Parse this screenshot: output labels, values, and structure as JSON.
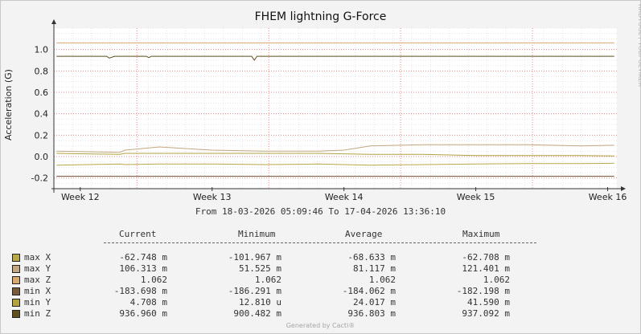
{
  "watermark": "RRDTOOL / TOBI OETIKER",
  "footer": "Generated by Cacti®",
  "chart_data": {
    "type": "line",
    "title": "FHEM lightning G-Force",
    "ylabel": "Acceleration (G)",
    "xlabel": "",
    "ylim": [
      -0.3,
      1.2
    ],
    "yticks": [
      -0.2,
      0.0,
      0.2,
      0.4,
      0.6,
      0.8,
      1.0
    ],
    "ytick_labels": [
      "-0.2",
      "0.0",
      "0.2",
      "0.4",
      "0.6",
      "0.8",
      "1.0"
    ],
    "x_range_weeks": [
      11.8,
      16.07
    ],
    "xticks": [
      12,
      13,
      14,
      15,
      16
    ],
    "xtick_labels": [
      "Week 12",
      "Week 13",
      "Week 14",
      "Week 15",
      "Week 16"
    ],
    "date_range": "From 18-03-2026 05:09:46 To 17-04-2026 13:36:10",
    "grid": true,
    "legend_position": "bottom-left",
    "legend_headers": [
      "Current",
      "Minimum",
      "Average",
      "Maximum"
    ],
    "series": [
      {
        "name": "max X",
        "color": "#b8a84a",
        "current": "-62.748 m",
        "minimum": "-101.967 m",
        "average": "-68.633 m",
        "maximum": "-62.708 m",
        "x": [
          11.82,
          12.3,
          12.34,
          12.6,
          13.0,
          13.4,
          13.8,
          14.2,
          14.6,
          15.0,
          15.4,
          15.8,
          16.05
        ],
        "y": [
          -0.08,
          -0.07,
          -0.075,
          -0.07,
          -0.07,
          -0.075,
          -0.07,
          -0.08,
          -0.075,
          -0.07,
          -0.065,
          -0.065,
          -0.063
        ]
      },
      {
        "name": "max Y",
        "color": "#c2a781",
        "current": "106.313 m",
        "minimum": "51.525 m",
        "average": "81.117 m",
        "maximum": "121.401 m",
        "x": [
          11.82,
          12.3,
          12.34,
          12.6,
          13.0,
          13.4,
          13.8,
          14.0,
          14.2,
          14.6,
          15.0,
          15.4,
          15.8,
          16.05
        ],
        "y": [
          0.05,
          0.04,
          0.06,
          0.09,
          0.06,
          0.05,
          0.05,
          0.06,
          0.1,
          0.11,
          0.11,
          0.11,
          0.1,
          0.106
        ]
      },
      {
        "name": "max Z",
        "color": "#d9a86f",
        "current": "1.062",
        "minimum": "1.062",
        "average": "1.062",
        "maximum": "1.062",
        "x": [
          11.82,
          16.05
        ],
        "y": [
          1.062,
          1.062
        ]
      },
      {
        "name": "min X",
        "color": "#7a5a3c",
        "current": "-183.698 m",
        "minimum": "-186.291 m",
        "average": "-184.062 m",
        "maximum": "-182.198 m",
        "x": [
          11.82,
          16.05
        ],
        "y": [
          -0.184,
          -0.184
        ]
      },
      {
        "name": "min Y",
        "color": "#b2a240",
        "current": "4.708 m",
        "minimum": "12.810 u",
        "average": "24.017 m",
        "maximum": "41.590 m",
        "x": [
          11.82,
          12.3,
          12.34,
          12.6,
          13.0,
          13.4,
          13.8,
          14.2,
          14.6,
          15.0,
          15.4,
          15.8,
          16.05
        ],
        "y": [
          0.03,
          0.02,
          0.03,
          0.03,
          0.03,
          0.03,
          0.03,
          0.02,
          0.02,
          0.01,
          0.01,
          0.01,
          0.005
        ]
      },
      {
        "name": "min Z",
        "color": "#5e4f1c",
        "current": "936.960 m",
        "minimum": "900.482 m",
        "average": "936.803 m",
        "maximum": "937.092 m",
        "x": [
          11.82,
          12.2,
          12.22,
          12.26,
          12.5,
          12.52,
          12.54,
          13.3,
          13.32,
          13.34,
          16.05
        ],
        "y": [
          0.937,
          0.937,
          0.92,
          0.937,
          0.937,
          0.925,
          0.937,
          0.937,
          0.9,
          0.937,
          0.937
        ]
      }
    ]
  }
}
